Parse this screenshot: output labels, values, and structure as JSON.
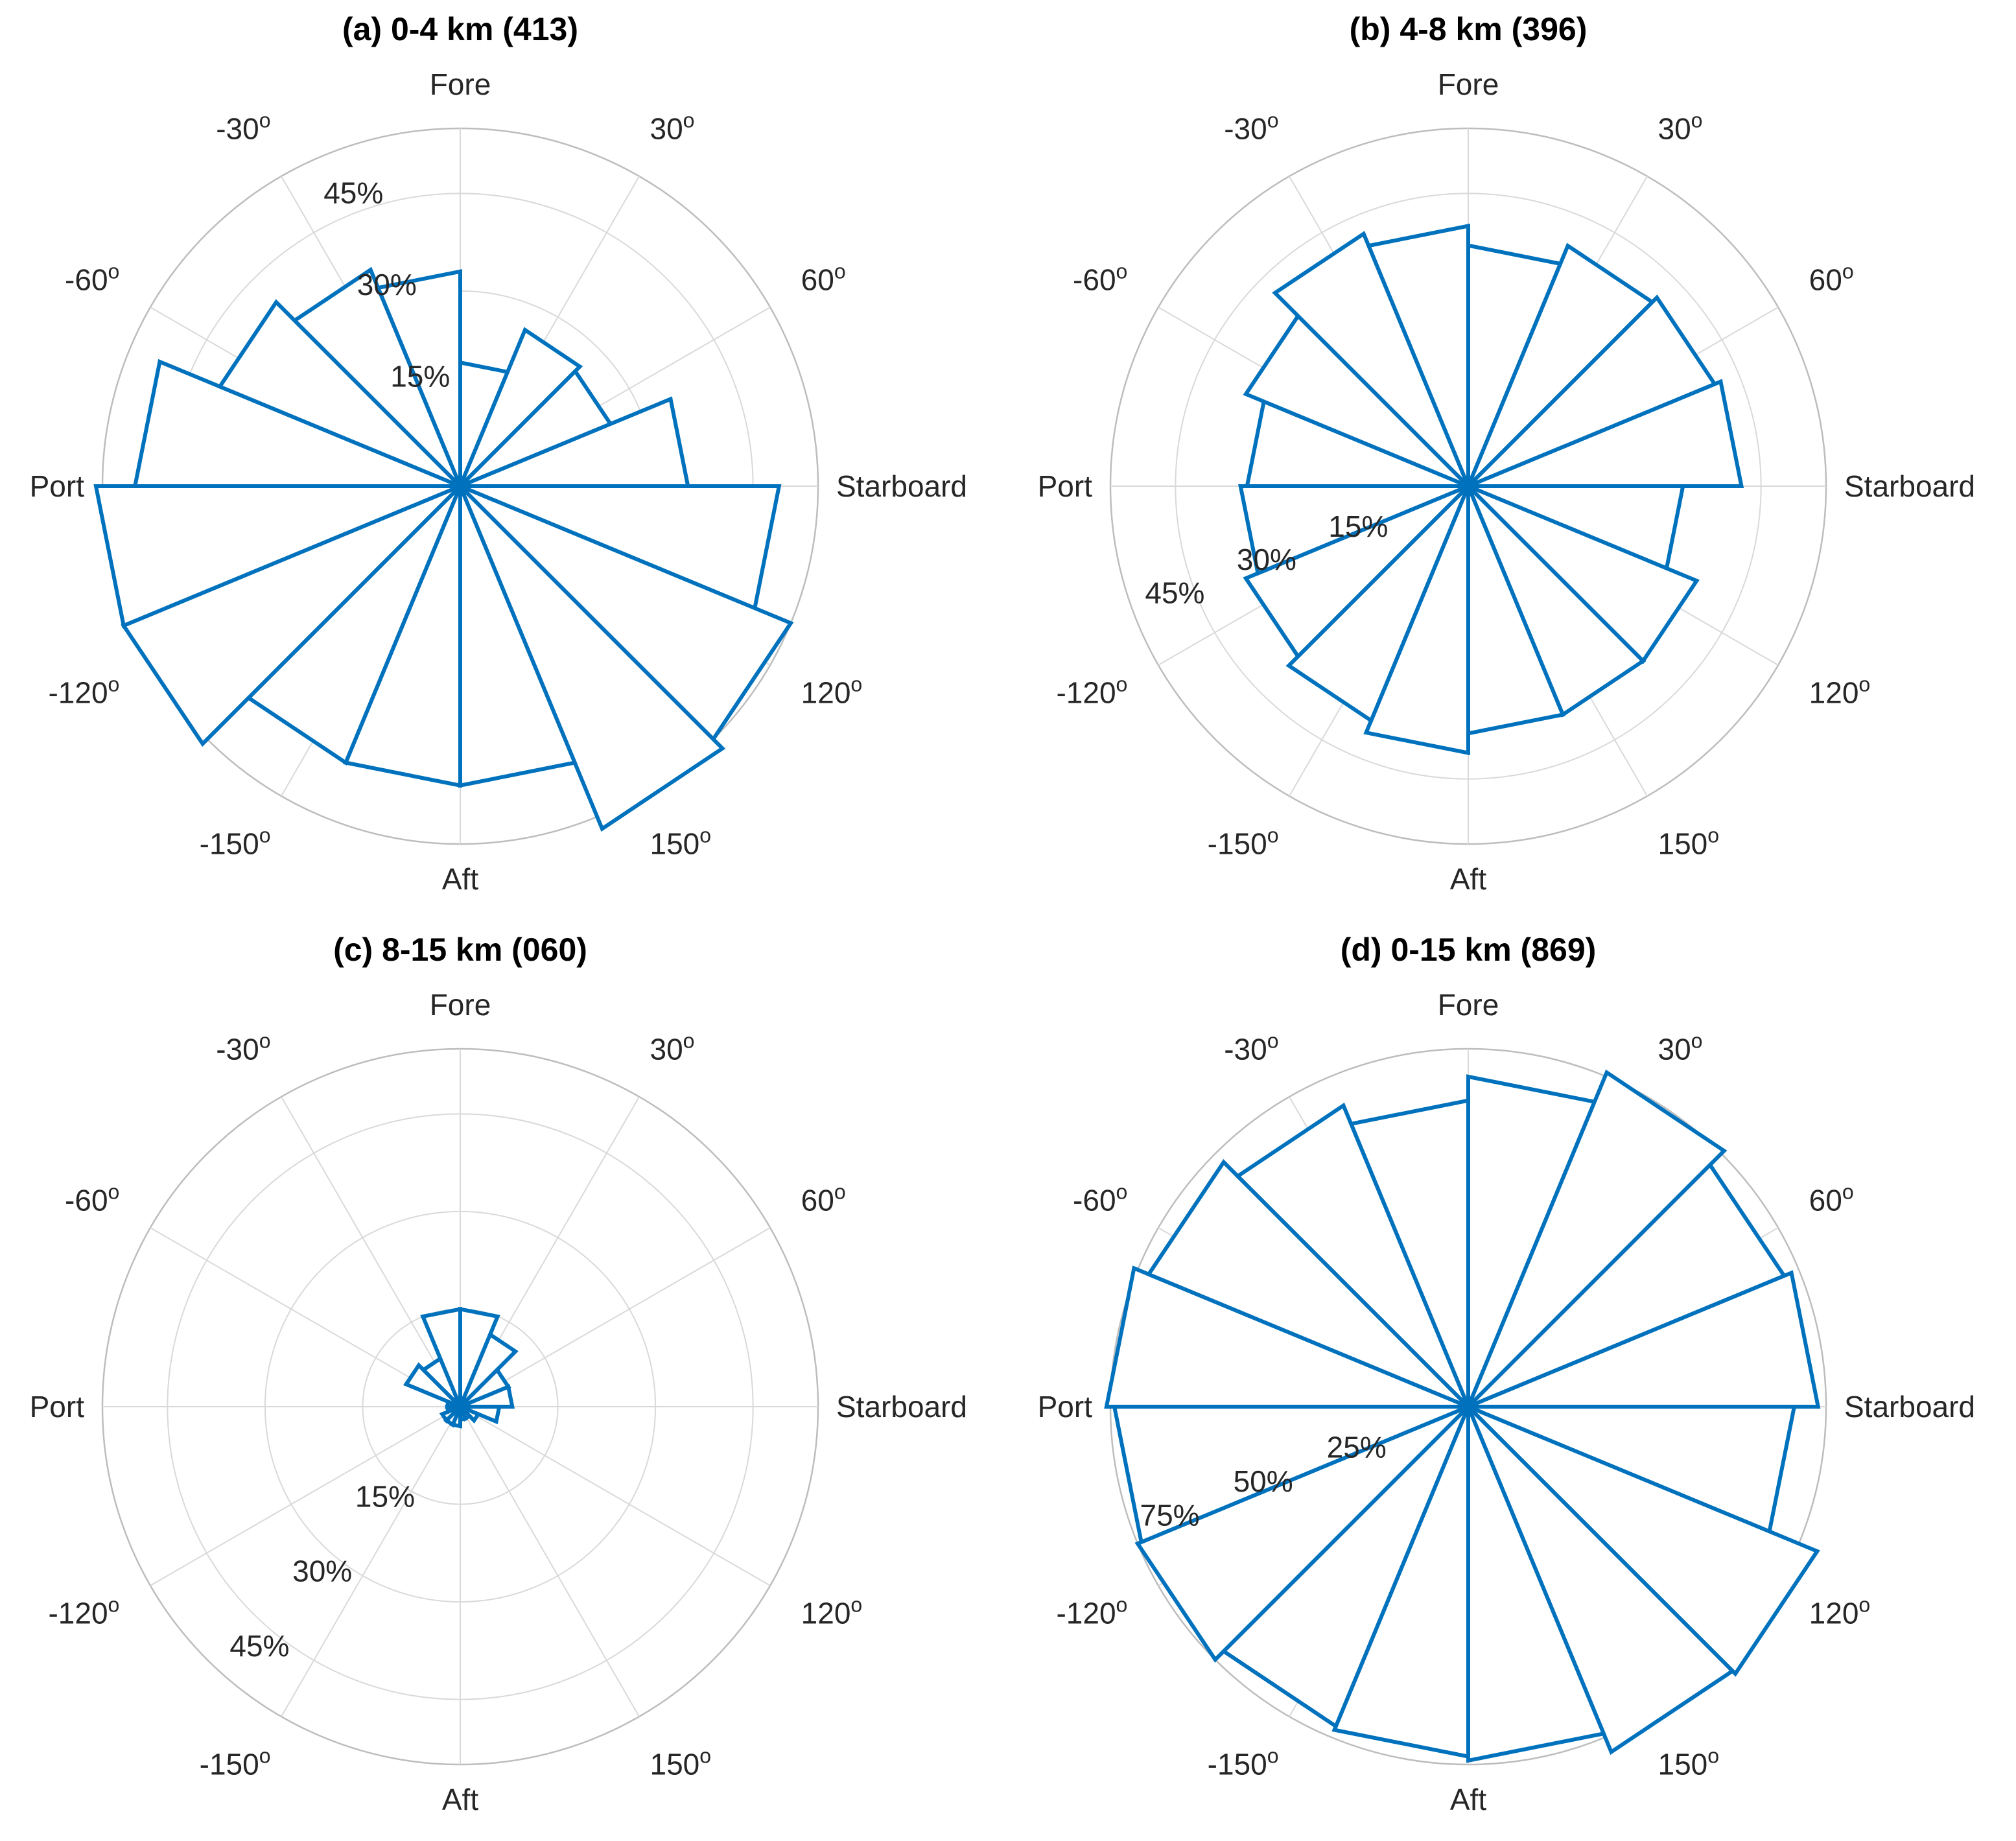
{
  "chart_data": [
    {
      "type": "polar-histogram",
      "title": "(a) 0-4 km (413)",
      "theta_labels": {
        "0": "Fore",
        "90": "Starboard",
        "180": "Aft",
        "-90": "Port"
      },
      "theta_ticks": [
        "-30",
        "30",
        "-60",
        "60",
        "-120",
        "120",
        "-150",
        "150"
      ],
      "theta_tick_suffix": "o",
      "r_max": 0.55,
      "r_ticks": [
        0.15,
        0.3,
        0.45
      ],
      "r_tick_labels": [
        "15%",
        "30%",
        "45%"
      ],
      "r_label_angle": -20,
      "bin_width_deg": 22.5,
      "bin_edges_deg": [
        -180,
        -157.5,
        -135,
        -112.5,
        -90,
        -67.5,
        -45,
        -22.5,
        0,
        22.5,
        45,
        67.5,
        90,
        112.5,
        135,
        157.5,
        180
      ],
      "values": [
        0.46,
        0.46,
        0.56,
        0.56,
        0.5,
        0.4,
        0.36,
        0.33,
        0.19,
        0.26,
        0.25,
        0.35,
        0.49,
        0.55,
        0.57,
        0.46
      ]
    },
    {
      "type": "polar-histogram",
      "title": "(b) 4-8 km (396)",
      "theta_labels": {
        "0": "Fore",
        "90": "Starboard",
        "180": "Aft",
        "-90": "Port"
      },
      "theta_ticks": [
        "-30",
        "30",
        "-60",
        "60",
        "-120",
        "120",
        "-150",
        "150"
      ],
      "theta_tick_suffix": "o",
      "r_max": 0.55,
      "r_ticks": [
        0.15,
        0.3,
        0.45
      ],
      "r_tick_labels": [
        "15%",
        "30%",
        "45%"
      ],
      "r_label_angle": -110,
      "bin_width_deg": 22.5,
      "bin_edges_deg": [
        -180,
        -157.5,
        -135,
        -112.5,
        -90,
        -67.5,
        -45,
        -22.5,
        0,
        22.5,
        45,
        67.5,
        90,
        112.5,
        135,
        157.5,
        180
      ],
      "values": [
        0.41,
        0.39,
        0.37,
        0.35,
        0.34,
        0.37,
        0.42,
        0.4,
        0.37,
        0.4,
        0.41,
        0.42,
        0.33,
        0.38,
        0.38,
        0.38
      ]
    },
    {
      "type": "polar-histogram",
      "title": "(c) 8-15 km (060)",
      "theta_labels": {
        "0": "Fore",
        "90": "Starboard",
        "180": "Aft",
        "-90": "Port"
      },
      "theta_ticks": [
        "-30",
        "30",
        "-60",
        "60",
        "-120",
        "120",
        "-150",
        "150"
      ],
      "theta_tick_suffix": "o",
      "r_max": 0.55,
      "r_ticks": [
        0.15,
        0.3,
        0.45
      ],
      "r_tick_labels": [
        "15%",
        "30%",
        "45%"
      ],
      "r_label_angle": -140,
      "bin_width_deg": 22.5,
      "bin_edges_deg": [
        -180,
        -157.5,
        -135,
        -112.5,
        -90,
        -67.5,
        -45,
        -22.5,
        0,
        22.5,
        45,
        67.5,
        90,
        112.5,
        135,
        157.5,
        180
      ],
      "values": [
        0.03,
        0.03,
        0.03,
        0.02,
        0.02,
        0.09,
        0.08,
        0.15,
        0.15,
        0.12,
        0.08,
        0.08,
        0.06,
        0.03,
        0.02,
        0.02
      ]
    },
    {
      "type": "polar-histogram",
      "title": "(d) 0-15 km (869)",
      "theta_labels": {
        "0": "Fore",
        "90": "Starboard",
        "180": "Aft",
        "-90": "Port"
      },
      "theta_ticks": [
        "-30",
        "30",
        "-60",
        "60",
        "-120",
        "120",
        "-150",
        "150"
      ],
      "theta_tick_suffix": "o",
      "r_max": 0.9,
      "r_ticks": [
        0.25,
        0.5,
        0.75
      ],
      "r_tick_labels": [
        "25%",
        "50%",
        "75%"
      ],
      "r_label_angle": -110,
      "bin_width_deg": 22.5,
      "bin_edges_deg": [
        -180,
        -157.5,
        -135,
        -112.5,
        -90,
        -67.5,
        -45,
        -22.5,
        0,
        22.5,
        45,
        67.5,
        90,
        112.5,
        135,
        157.5,
        180
      ],
      "values": [
        0.88,
        0.87,
        0.9,
        0.89,
        0.91,
        0.87,
        0.82,
        0.77,
        0.83,
        0.91,
        0.86,
        0.88,
        0.82,
        0.95,
        0.94,
        0.89
      ]
    }
  ]
}
